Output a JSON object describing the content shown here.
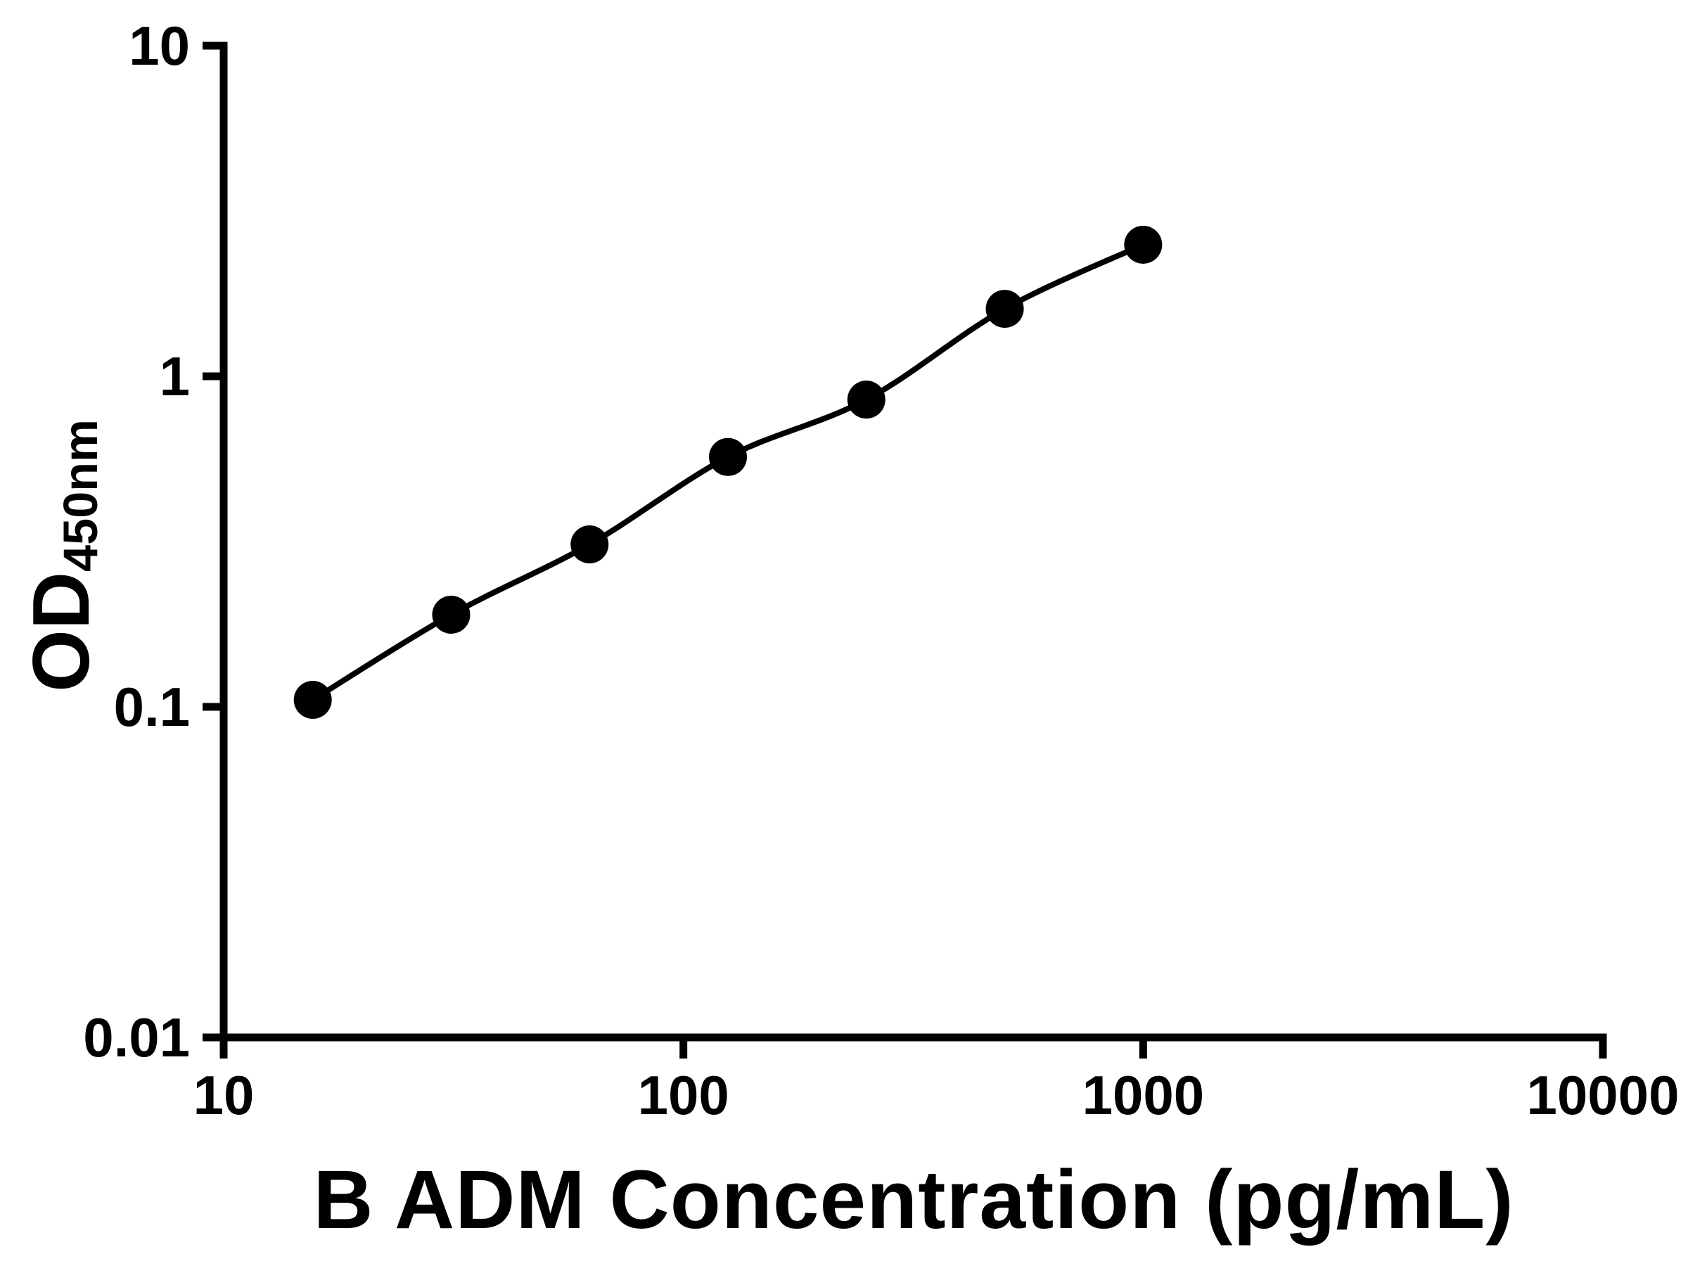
{
  "chart_data": {
    "type": "scatter",
    "title": "",
    "xlabel": "B ADM Concentration (pg/mL)",
    "ylabel": "OD450nm",
    "ylabel_main": "OD",
    "ylabel_sub": "450nm",
    "x_scale": "log",
    "y_scale": "log",
    "xlim": [
      10,
      10000
    ],
    "ylim": [
      0.01,
      10
    ],
    "x_ticks": [
      10,
      100,
      1000,
      10000
    ],
    "x_tick_labels": [
      "10",
      "100",
      "1000",
      "10000"
    ],
    "y_ticks": [
      0.01,
      0.1,
      1,
      10
    ],
    "y_tick_labels": [
      "0.01",
      "0.1",
      "1",
      "10"
    ],
    "x": [
      15.625,
      31.25,
      62.5,
      125,
      250,
      500,
      1000
    ],
    "y": [
      0.105,
      0.19,
      0.31,
      0.57,
      0.85,
      1.6,
      2.5
    ],
    "has_fit_line": true,
    "grid": false,
    "legend": "none",
    "colors": {
      "axis": "#000000",
      "marker": "#000000",
      "line": "#000000",
      "text": "#000000",
      "background": "#ffffff"
    }
  }
}
